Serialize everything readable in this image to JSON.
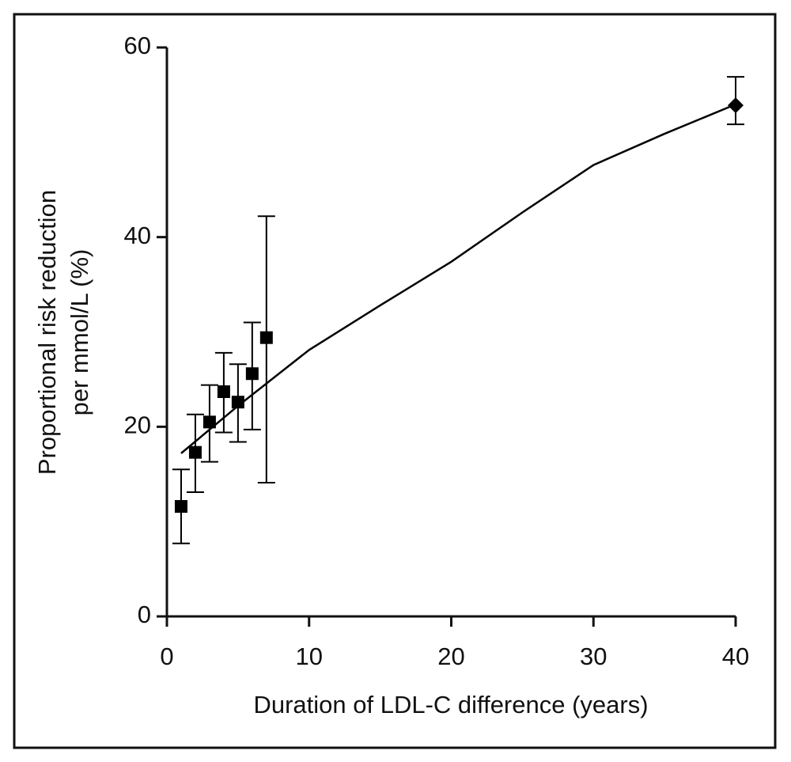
{
  "chart_data": {
    "type": "scatter",
    "x_label": "Duration of LDL-C difference (years)",
    "y_label": [
      "Proportional risk reduction",
      "per mmol/L (%)"
    ],
    "xlim": [
      0,
      40
    ],
    "xticks": [
      0,
      10,
      20,
      30,
      40
    ],
    "ylim": [
      0,
      60
    ],
    "yticks": [
      0,
      20,
      40,
      60
    ],
    "color": "#000000",
    "series": [
      {
        "marker": "square",
        "x": [
          1,
          2,
          3,
          4,
          5,
          6,
          7
        ],
        "values": [
          11.6,
          17.3,
          20.5,
          23.7,
          22.6,
          25.6,
          29.4
        ],
        "lower": [
          7.7,
          13.1,
          16.3,
          19.4,
          18.4,
          19.7,
          14.1
        ],
        "upper": [
          15.5,
          21.3,
          24.4,
          27.8,
          26.6,
          31.0,
          42.2
        ]
      },
      {
        "marker": "diamond",
        "x": [
          40
        ],
        "values": [
          53.9
        ],
        "lower": [
          51.9
        ],
        "upper": [
          56.9
        ]
      },
      {
        "marker": "line",
        "x": [
          1,
          5,
          10,
          15,
          20,
          25,
          30,
          35,
          40
        ],
        "values": [
          17.2,
          22.2,
          28.1,
          32.8,
          37.4,
          42.6,
          47.6,
          50.9,
          54.0
        ]
      }
    ]
  }
}
